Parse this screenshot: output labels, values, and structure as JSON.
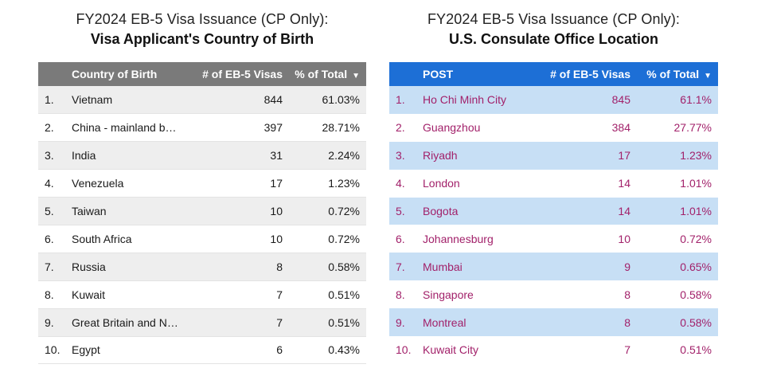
{
  "left": {
    "title_line1": "FY2024 EB-5 Visa Issuance (CP Only):",
    "title_line2": "Visa Applicant's Country of Birth",
    "headers": {
      "name": "Country of Birth",
      "visas": "# of EB-5 Visas",
      "pct": "% of Total",
      "sort_icon": "▼"
    },
    "rows": [
      {
        "idx": "1.",
        "name": "Vietnam",
        "visas": "844",
        "pct": "61.03%"
      },
      {
        "idx": "2.",
        "name": "China - mainland b…",
        "visas": "397",
        "pct": "28.71%"
      },
      {
        "idx": "3.",
        "name": "India",
        "visas": "31",
        "pct": "2.24%"
      },
      {
        "idx": "4.",
        "name": "Venezuela",
        "visas": "17",
        "pct": "1.23%"
      },
      {
        "idx": "5.",
        "name": "Taiwan",
        "visas": "10",
        "pct": "0.72%"
      },
      {
        "idx": "6.",
        "name": "South Africa",
        "visas": "10",
        "pct": "0.72%"
      },
      {
        "idx": "7.",
        "name": "Russia",
        "visas": "8",
        "pct": "0.58%"
      },
      {
        "idx": "8.",
        "name": "Kuwait",
        "visas": "7",
        "pct": "0.51%"
      },
      {
        "idx": "9.",
        "name": "Great Britain and N…",
        "visas": "7",
        "pct": "0.51%"
      },
      {
        "idx": "10.",
        "name": "Egypt",
        "visas": "6",
        "pct": "0.43%"
      }
    ],
    "colors": {
      "header_bg": "#7a7a7a",
      "row_alt_bg": "#eeeeee",
      "text": "#1a1a1a"
    }
  },
  "right": {
    "title_line1": "FY2024 EB-5 Visa Issuance (CP Only):",
    "title_line2": "U.S. Consulate Office Location",
    "headers": {
      "name": "POST",
      "visas": "# of EB-5 Visas",
      "pct": "% of Total",
      "sort_icon": "▼"
    },
    "rows": [
      {
        "idx": "1.",
        "name": "Ho Chi Minh City",
        "visas": "845",
        "pct": "61.1%"
      },
      {
        "idx": "2.",
        "name": "Guangzhou",
        "visas": "384",
        "pct": "27.77%"
      },
      {
        "idx": "3.",
        "name": "Riyadh",
        "visas": "17",
        "pct": "1.23%"
      },
      {
        "idx": "4.",
        "name": "London",
        "visas": "14",
        "pct": "1.01%"
      },
      {
        "idx": "5.",
        "name": "Bogota",
        "visas": "14",
        "pct": "1.01%"
      },
      {
        "idx": "6.",
        "name": "Johannesburg",
        "visas": "10",
        "pct": "0.72%"
      },
      {
        "idx": "7.",
        "name": "Mumbai",
        "visas": "9",
        "pct": "0.65%"
      },
      {
        "idx": "8.",
        "name": "Singapore",
        "visas": "8",
        "pct": "0.58%"
      },
      {
        "idx": "9.",
        "name": "Montreal",
        "visas": "8",
        "pct": "0.58%"
      },
      {
        "idx": "10.",
        "name": "Kuwait City",
        "visas": "7",
        "pct": "0.51%"
      }
    ],
    "colors": {
      "header_bg": "#1d6fd6",
      "row_alt_bg": "#c7dff5",
      "text": "#a2216a"
    }
  }
}
